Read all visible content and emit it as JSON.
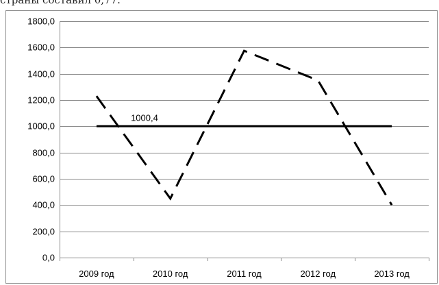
{
  "page": {
    "top_text": "страны составил 0,77."
  },
  "chart_data": {
    "type": "line",
    "categories": [
      "2009 год",
      "2010 год",
      "2011 год",
      "2012 год",
      "2013 год"
    ],
    "series": [
      {
        "values": [
          1230,
          450,
          1575,
          1350,
          400
        ],
        "style": "dashed"
      },
      {
        "values": [
          1000.4,
          1000.4,
          1000.4,
          1000.4,
          1000.4
        ],
        "style": "solid"
      }
    ],
    "ylim": [
      0,
      1800
    ],
    "yticks": [
      "0,0",
      "200,0",
      "400,0",
      "600,0",
      "800,0",
      "1000,0",
      "1200,0",
      "1400,0",
      "1600,0",
      "1800,0"
    ],
    "annotation": "1000,4",
    "grid": true,
    "colors": {
      "line": "#000000",
      "grid": "#888888",
      "axis": "#888888",
      "text": "#000000"
    }
  }
}
